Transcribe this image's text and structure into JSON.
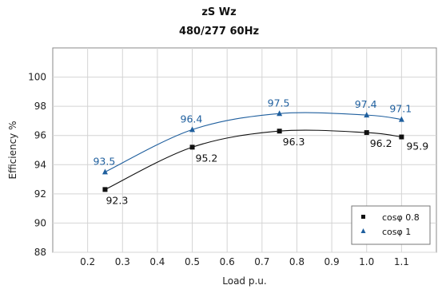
{
  "chart_data": {
    "type": "line",
    "title": "zS Wz",
    "subtitle": "480/277 60Hz",
    "xlabel": "Load p.u.",
    "ylabel": "Efficiency %",
    "xlim": [
      0.1,
      1.2
    ],
    "ylim": [
      88,
      102
    ],
    "xticks": [
      "0.2",
      "0.3",
      "0.4",
      "0.5",
      "0.6",
      "0.7",
      "0.8",
      "0.9",
      "1.0",
      "1.1"
    ],
    "yticks": [
      "88",
      "90",
      "92",
      "94",
      "96",
      "98",
      "100"
    ],
    "grid": true,
    "legend_position": "bottom-right",
    "series": [
      {
        "name": "cosφ 0.8",
        "marker": "square",
        "color": "#111111",
        "x": [
          0.25,
          0.5,
          0.75,
          1.0,
          1.1
        ],
        "y": [
          92.3,
          95.2,
          96.3,
          96.2,
          95.9
        ],
        "labels": [
          "92.3",
          "95.2",
          "96.3",
          "96.2",
          "95.9"
        ]
      },
      {
        "name": "cosφ 1",
        "marker": "triangle",
        "color": "#1f5f9e",
        "x": [
          0.25,
          0.5,
          0.75,
          1.0,
          1.1
        ],
        "y": [
          93.5,
          96.4,
          97.5,
          97.4,
          97.1
        ],
        "labels": [
          "93.5",
          "96.4",
          "97.5",
          "97.4",
          "97.1"
        ]
      }
    ]
  }
}
